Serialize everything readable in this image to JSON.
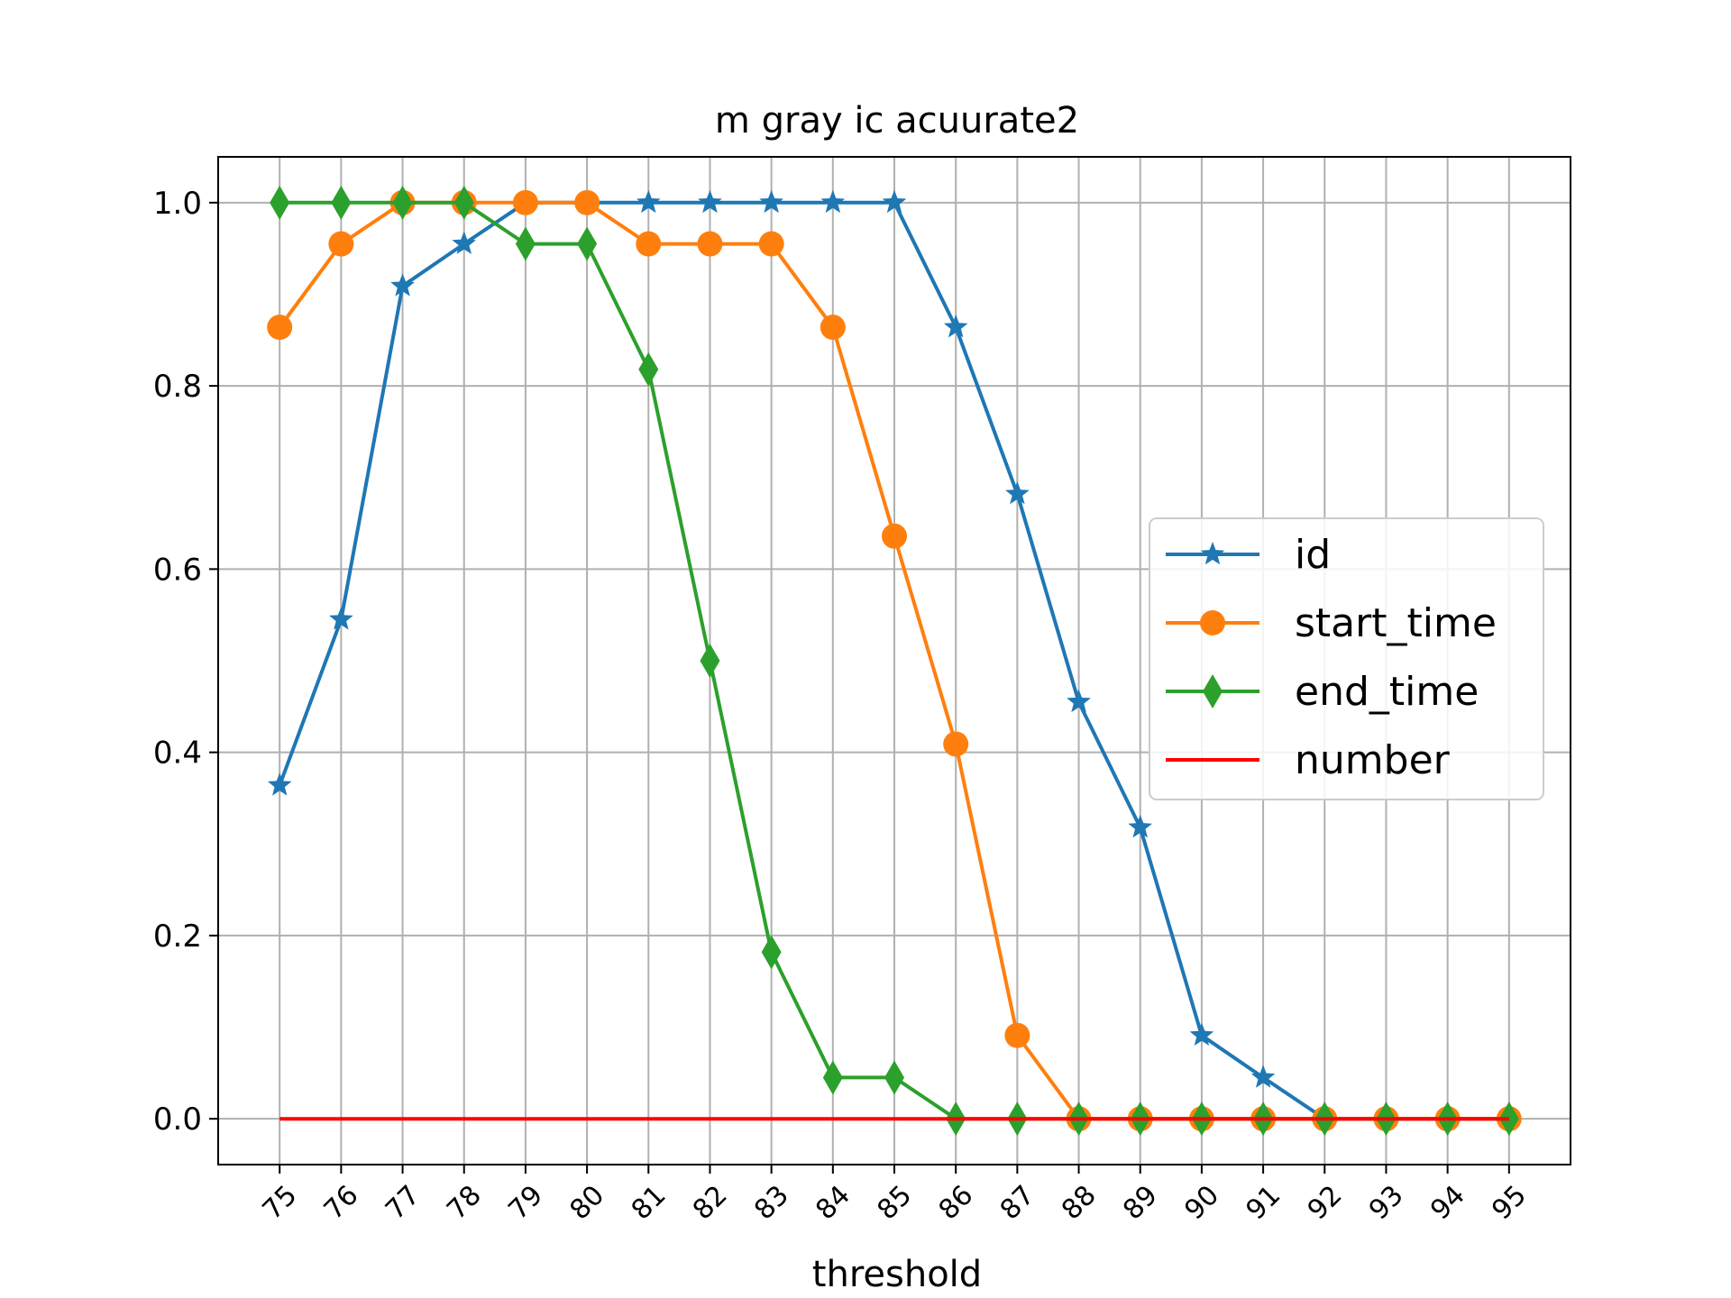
{
  "chart_data": {
    "type": "line",
    "title": "m gray ic acuurate2",
    "xlabel": "threshold",
    "ylabel": "",
    "categories": [
      "75",
      "76",
      "77",
      "78",
      "79",
      "80",
      "81",
      "82",
      "83",
      "84",
      "85",
      "86",
      "87",
      "88",
      "89",
      "90",
      "91",
      "92",
      "93",
      "94",
      "95"
    ],
    "xlim": [
      74,
      96
    ],
    "ylim": [
      -0.05,
      1.05
    ],
    "yticks": [
      "0.0",
      "0.2",
      "0.4",
      "0.6",
      "0.8",
      "1.0"
    ],
    "grid": true,
    "legend_position": "center-right",
    "series": [
      {
        "name": "id",
        "color": "#1f77b4",
        "marker": "star",
        "values": [
          0.364,
          0.545,
          0.909,
          0.955,
          1.0,
          1.0,
          1.0,
          1.0,
          1.0,
          1.0,
          1.0,
          0.864,
          0.682,
          0.455,
          0.318,
          0.091,
          0.045,
          0.0,
          0.0,
          0.0,
          0.0
        ]
      },
      {
        "name": "start_time",
        "color": "#ff7f0e",
        "marker": "circle",
        "values": [
          0.864,
          0.955,
          1.0,
          1.0,
          1.0,
          1.0,
          0.955,
          0.955,
          0.955,
          0.864,
          0.636,
          0.409,
          0.091,
          0.0,
          0.0,
          0.0,
          0.0,
          0.0,
          0.0,
          0.0,
          0.0
        ]
      },
      {
        "name": "end_time",
        "color": "#2ca02c",
        "marker": "thin-diamond",
        "values": [
          1.0,
          1.0,
          1.0,
          1.0,
          0.955,
          0.955,
          0.818,
          0.5,
          0.182,
          0.045,
          0.045,
          0.0,
          0.0,
          0.0,
          0.0,
          0.0,
          0.0,
          0.0,
          0.0,
          0.0,
          0.0
        ]
      },
      {
        "name": "number",
        "color": "#ff0000",
        "marker": "none",
        "values": [
          0.0,
          0.0,
          0.0,
          0.0,
          0.0,
          0.0,
          0.0,
          0.0,
          0.0,
          0.0,
          0.0,
          0.0,
          0.0,
          0.0,
          0.0,
          0.0,
          0.0,
          0.0,
          0.0,
          0.0,
          0.0
        ]
      }
    ]
  }
}
